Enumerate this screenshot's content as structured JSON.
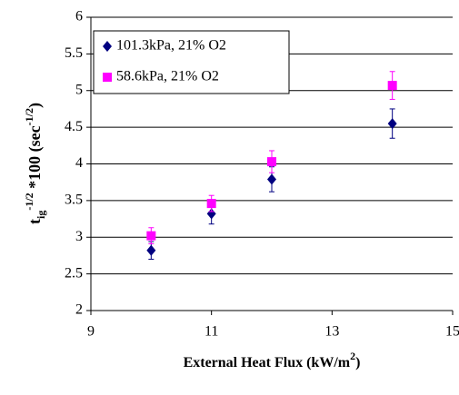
{
  "chart_data": {
    "type": "scatter",
    "xlabel_parts": [
      "External Heat Flux (kW/m",
      "2",
      ")"
    ],
    "ylabel_parts": [
      "t",
      "ig",
      "-1/2",
      " *100 (sec",
      "-1/2",
      ")"
    ],
    "x": [
      10,
      11,
      12,
      14
    ],
    "series": [
      {
        "name": "101.3kPa, 21% O2",
        "color": "#000080",
        "marker": "diamond",
        "values": [
          2.82,
          3.32,
          3.79,
          4.55
        ],
        "errors": [
          0.12,
          0.14,
          0.17,
          0.2
        ]
      },
      {
        "name": "58.6kPa, 21% O2",
        "color": "#ff00ff",
        "marker": "square",
        "values": [
          3.02,
          3.46,
          4.03,
          5.07
        ],
        "errors": [
          0.11,
          0.11,
          0.15,
          0.19
        ]
      }
    ],
    "xlim": [
      9,
      15
    ],
    "xticks": [
      9,
      11,
      13,
      15
    ],
    "ylim": [
      2,
      6
    ],
    "yticks": [
      2,
      2.5,
      3,
      3.5,
      4,
      4.5,
      5,
      5.5,
      6
    ],
    "grid": true,
    "legend": "top-left"
  }
}
